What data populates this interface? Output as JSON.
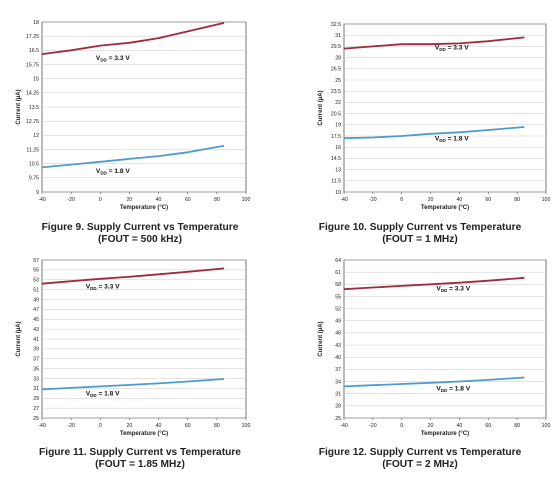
{
  "figures": [
    {
      "caption": "Figure 9. Supply Current vs Temperature",
      "subcaption": "(FOUT = 500 kHz)"
    },
    {
      "caption": "Figure 10. Supply Current vs Temperature",
      "subcaption": "(FOUT = 1 MHz)"
    },
    {
      "caption": "Figure 11. Supply Current vs Temperature",
      "subcaption": "(FOUT = 1.85 MHz)"
    },
    {
      "caption": "Figure 12. Supply Current vs Temperature",
      "subcaption": "(FOUT = 2 MHz)"
    }
  ],
  "colors": {
    "vdd33": "#a02a3e",
    "vdd18": "#4e9bcf",
    "grid": "#c8c8c8",
    "axis": "#555555"
  },
  "chart_data": [
    {
      "type": "line",
      "xlabel": "Temperature (°C)",
      "ylabel": "Current (µA)",
      "xlim": [
        -40,
        100
      ],
      "ylim": [
        9,
        18
      ],
      "xticks": [
        -40,
        -20,
        0,
        20,
        40,
        60,
        80,
        100
      ],
      "yticks": [
        "9",
        "9.75",
        "10.5",
        "11.25",
        "12",
        "12.75",
        "13.5",
        "14.25",
        "15",
        "15.75",
        "16.5",
        "17.25",
        "18"
      ],
      "grid": true,
      "series": [
        {
          "name": "VDD = 3.3 V",
          "x": [
            -40,
            -20,
            0,
            20,
            40,
            60,
            85
          ],
          "y": [
            16.3,
            16.5,
            16.75,
            16.9,
            17.15,
            17.5,
            17.95
          ]
        },
        {
          "name": "VDD = 1.8 V",
          "x": [
            -40,
            -20,
            0,
            20,
            40,
            60,
            85
          ],
          "y": [
            10.3,
            10.45,
            10.6,
            10.75,
            10.9,
            11.1,
            11.45
          ]
        }
      ]
    },
    {
      "type": "line",
      "xlabel": "Temperature (°C)",
      "ylabel": "Current (µA)",
      "xlim": [
        -40,
        100
      ],
      "ylim": [
        10,
        32.5
      ],
      "xticks": [
        -40,
        -20,
        0,
        20,
        40,
        60,
        80,
        100
      ],
      "yticks": [
        "10",
        "11.5",
        "13",
        "14.5",
        "16",
        "17.5",
        "19",
        "20.5",
        "22",
        "23.5",
        "25",
        "26.5",
        "28",
        "29.5",
        "31",
        "32.5"
      ],
      "grid": true,
      "series": [
        {
          "name": "VDD = 3.3 V",
          "x": [
            -40,
            -20,
            0,
            20,
            40,
            60,
            85
          ],
          "y": [
            29.2,
            29.5,
            29.8,
            29.8,
            29.9,
            30.2,
            30.7
          ]
        },
        {
          "name": "VDD = 1.8 V",
          "x": [
            -40,
            -20,
            0,
            20,
            40,
            60,
            85
          ],
          "y": [
            17.2,
            17.3,
            17.5,
            17.8,
            18.0,
            18.3,
            18.7
          ]
        }
      ]
    },
    {
      "type": "line",
      "xlabel": "Temperature (°C)",
      "ylabel": "Current (µA)",
      "xlim": [
        -40,
        100
      ],
      "ylim": [
        25,
        57
      ],
      "xticks": [
        -40,
        -20,
        0,
        20,
        40,
        60,
        80,
        100
      ],
      "yticks": [
        "25",
        "27",
        "29",
        "31",
        "33",
        "35",
        "37",
        "39",
        "41",
        "43",
        "45",
        "47",
        "49",
        "51",
        "53",
        "55",
        "57"
      ],
      "grid": true,
      "series": [
        {
          "name": "VDD = 3.3 V",
          "x": [
            -40,
            -20,
            0,
            20,
            40,
            60,
            85
          ],
          "y": [
            52.2,
            52.7,
            53.2,
            53.6,
            54.1,
            54.6,
            55.3
          ]
        },
        {
          "name": "VDD = 1.8 V",
          "x": [
            -40,
            -20,
            0,
            20,
            40,
            60,
            85
          ],
          "y": [
            30.8,
            31.1,
            31.4,
            31.7,
            32.0,
            32.4,
            32.9
          ]
        }
      ]
    },
    {
      "type": "line",
      "xlabel": "Temperature (°C)",
      "ylabel": "Current (µA)",
      "xlim": [
        -40,
        100
      ],
      "ylim": [
        25,
        64
      ],
      "xticks": [
        -40,
        -20,
        0,
        20,
        40,
        60,
        80,
        100
      ],
      "yticks": [
        "25",
        "28",
        "31",
        "34",
        "37",
        "40",
        "43",
        "46",
        "49",
        "52",
        "55",
        "58",
        "61",
        "64"
      ],
      "grid": true,
      "series": [
        {
          "name": "VDD = 3.3 V",
          "x": [
            -40,
            -20,
            0,
            20,
            40,
            60,
            85
          ],
          "y": [
            56.8,
            57.2,
            57.6,
            58.0,
            58.4,
            58.9,
            59.6
          ]
        },
        {
          "name": "VDD = 1.8 V",
          "x": [
            -40,
            -20,
            0,
            20,
            40,
            60,
            85
          ],
          "y": [
            32.8,
            33.1,
            33.4,
            33.7,
            34.0,
            34.4,
            35.0
          ]
        }
      ]
    }
  ],
  "series_labels": [
    {
      "prefix": "V",
      "sub": "DD",
      "suffix": " = 3.3 V"
    },
    {
      "prefix": "V",
      "sub": "DD",
      "suffix": " = 1.8 V"
    }
  ]
}
